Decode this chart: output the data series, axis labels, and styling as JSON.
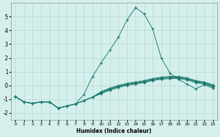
{
  "xlabel": "Humidex (Indice chaleur)",
  "background_color": "#d4efec",
  "grid_color": "#b8d8d4",
  "line_color": "#1a7a6e",
  "xlim": [
    -0.5,
    23.5
  ],
  "ylim": [
    -2.5,
    6.0
  ],
  "xticks": [
    0,
    1,
    2,
    3,
    4,
    5,
    6,
    7,
    8,
    9,
    10,
    11,
    12,
    13,
    14,
    15,
    16,
    17,
    18,
    19,
    20,
    21,
    22,
    23
  ],
  "yticks": [
    -2,
    -1,
    0,
    1,
    2,
    3,
    4,
    5
  ],
  "lines": [
    {
      "x": [
        0,
        1,
        2,
        3,
        4,
        5,
        6,
        7,
        8,
        9,
        10,
        11,
        12,
        13,
        14,
        15,
        16,
        17,
        18,
        19,
        20,
        21,
        22,
        23
      ],
      "y": [
        -0.8,
        -1.2,
        -1.3,
        -1.2,
        -1.2,
        -1.65,
        -1.5,
        -1.35,
        -0.65,
        0.65,
        1.65,
        2.55,
        3.5,
        4.75,
        5.65,
        5.2,
        4.1,
        2.0,
        0.9,
        0.45,
        0.1,
        -0.25,
        0.05,
        -0.2
      ]
    },
    {
      "x": [
        0,
        1,
        2,
        3,
        4,
        5,
        6,
        7,
        8,
        9,
        10,
        11,
        12,
        13,
        14,
        15,
        16,
        17,
        18,
        19,
        20,
        21,
        22,
        23
      ],
      "y": [
        -0.8,
        -1.2,
        -1.3,
        -1.2,
        -1.2,
        -1.65,
        -1.5,
        -1.35,
        -1.1,
        -0.85,
        -0.6,
        -0.35,
        -0.15,
        0.0,
        0.1,
        0.2,
        0.35,
        0.45,
        0.5,
        0.5,
        0.4,
        0.2,
        0.1,
        -0.1
      ]
    },
    {
      "x": [
        0,
        1,
        2,
        3,
        4,
        5,
        6,
        7,
        8,
        9,
        10,
        11,
        12,
        13,
        14,
        15,
        16,
        17,
        18,
        19,
        20,
        21,
        22,
        23
      ],
      "y": [
        -0.8,
        -1.2,
        -1.3,
        -1.2,
        -1.2,
        -1.65,
        -1.5,
        -1.35,
        -1.1,
        -0.85,
        -0.55,
        -0.3,
        -0.1,
        0.05,
        0.15,
        0.25,
        0.4,
        0.5,
        0.55,
        0.55,
        0.45,
        0.25,
        0.15,
        -0.05
      ]
    },
    {
      "x": [
        0,
        1,
        2,
        3,
        4,
        5,
        6,
        7,
        8,
        9,
        10,
        11,
        12,
        13,
        14,
        15,
        16,
        17,
        18,
        19,
        20,
        21,
        22,
        23
      ],
      "y": [
        -0.8,
        -1.2,
        -1.3,
        -1.2,
        -1.2,
        -1.65,
        -1.5,
        -1.35,
        -1.1,
        -0.85,
        -0.5,
        -0.25,
        -0.05,
        0.1,
        0.2,
        0.3,
        0.45,
        0.55,
        0.6,
        0.6,
        0.5,
        0.3,
        0.2,
        0.0
      ]
    },
    {
      "x": [
        0,
        1,
        2,
        3,
        4,
        5,
        6,
        7,
        8,
        9,
        10,
        11,
        12,
        13,
        14,
        15,
        16,
        17,
        18,
        19,
        20,
        21,
        22,
        23
      ],
      "y": [
        -0.8,
        -1.2,
        -1.3,
        -1.2,
        -1.2,
        -1.65,
        -1.5,
        -1.35,
        -1.1,
        -0.85,
        -0.45,
        -0.2,
        0.0,
        0.15,
        0.25,
        0.35,
        0.5,
        0.6,
        0.65,
        0.65,
        0.55,
        0.35,
        0.25,
        0.05
      ]
    }
  ]
}
